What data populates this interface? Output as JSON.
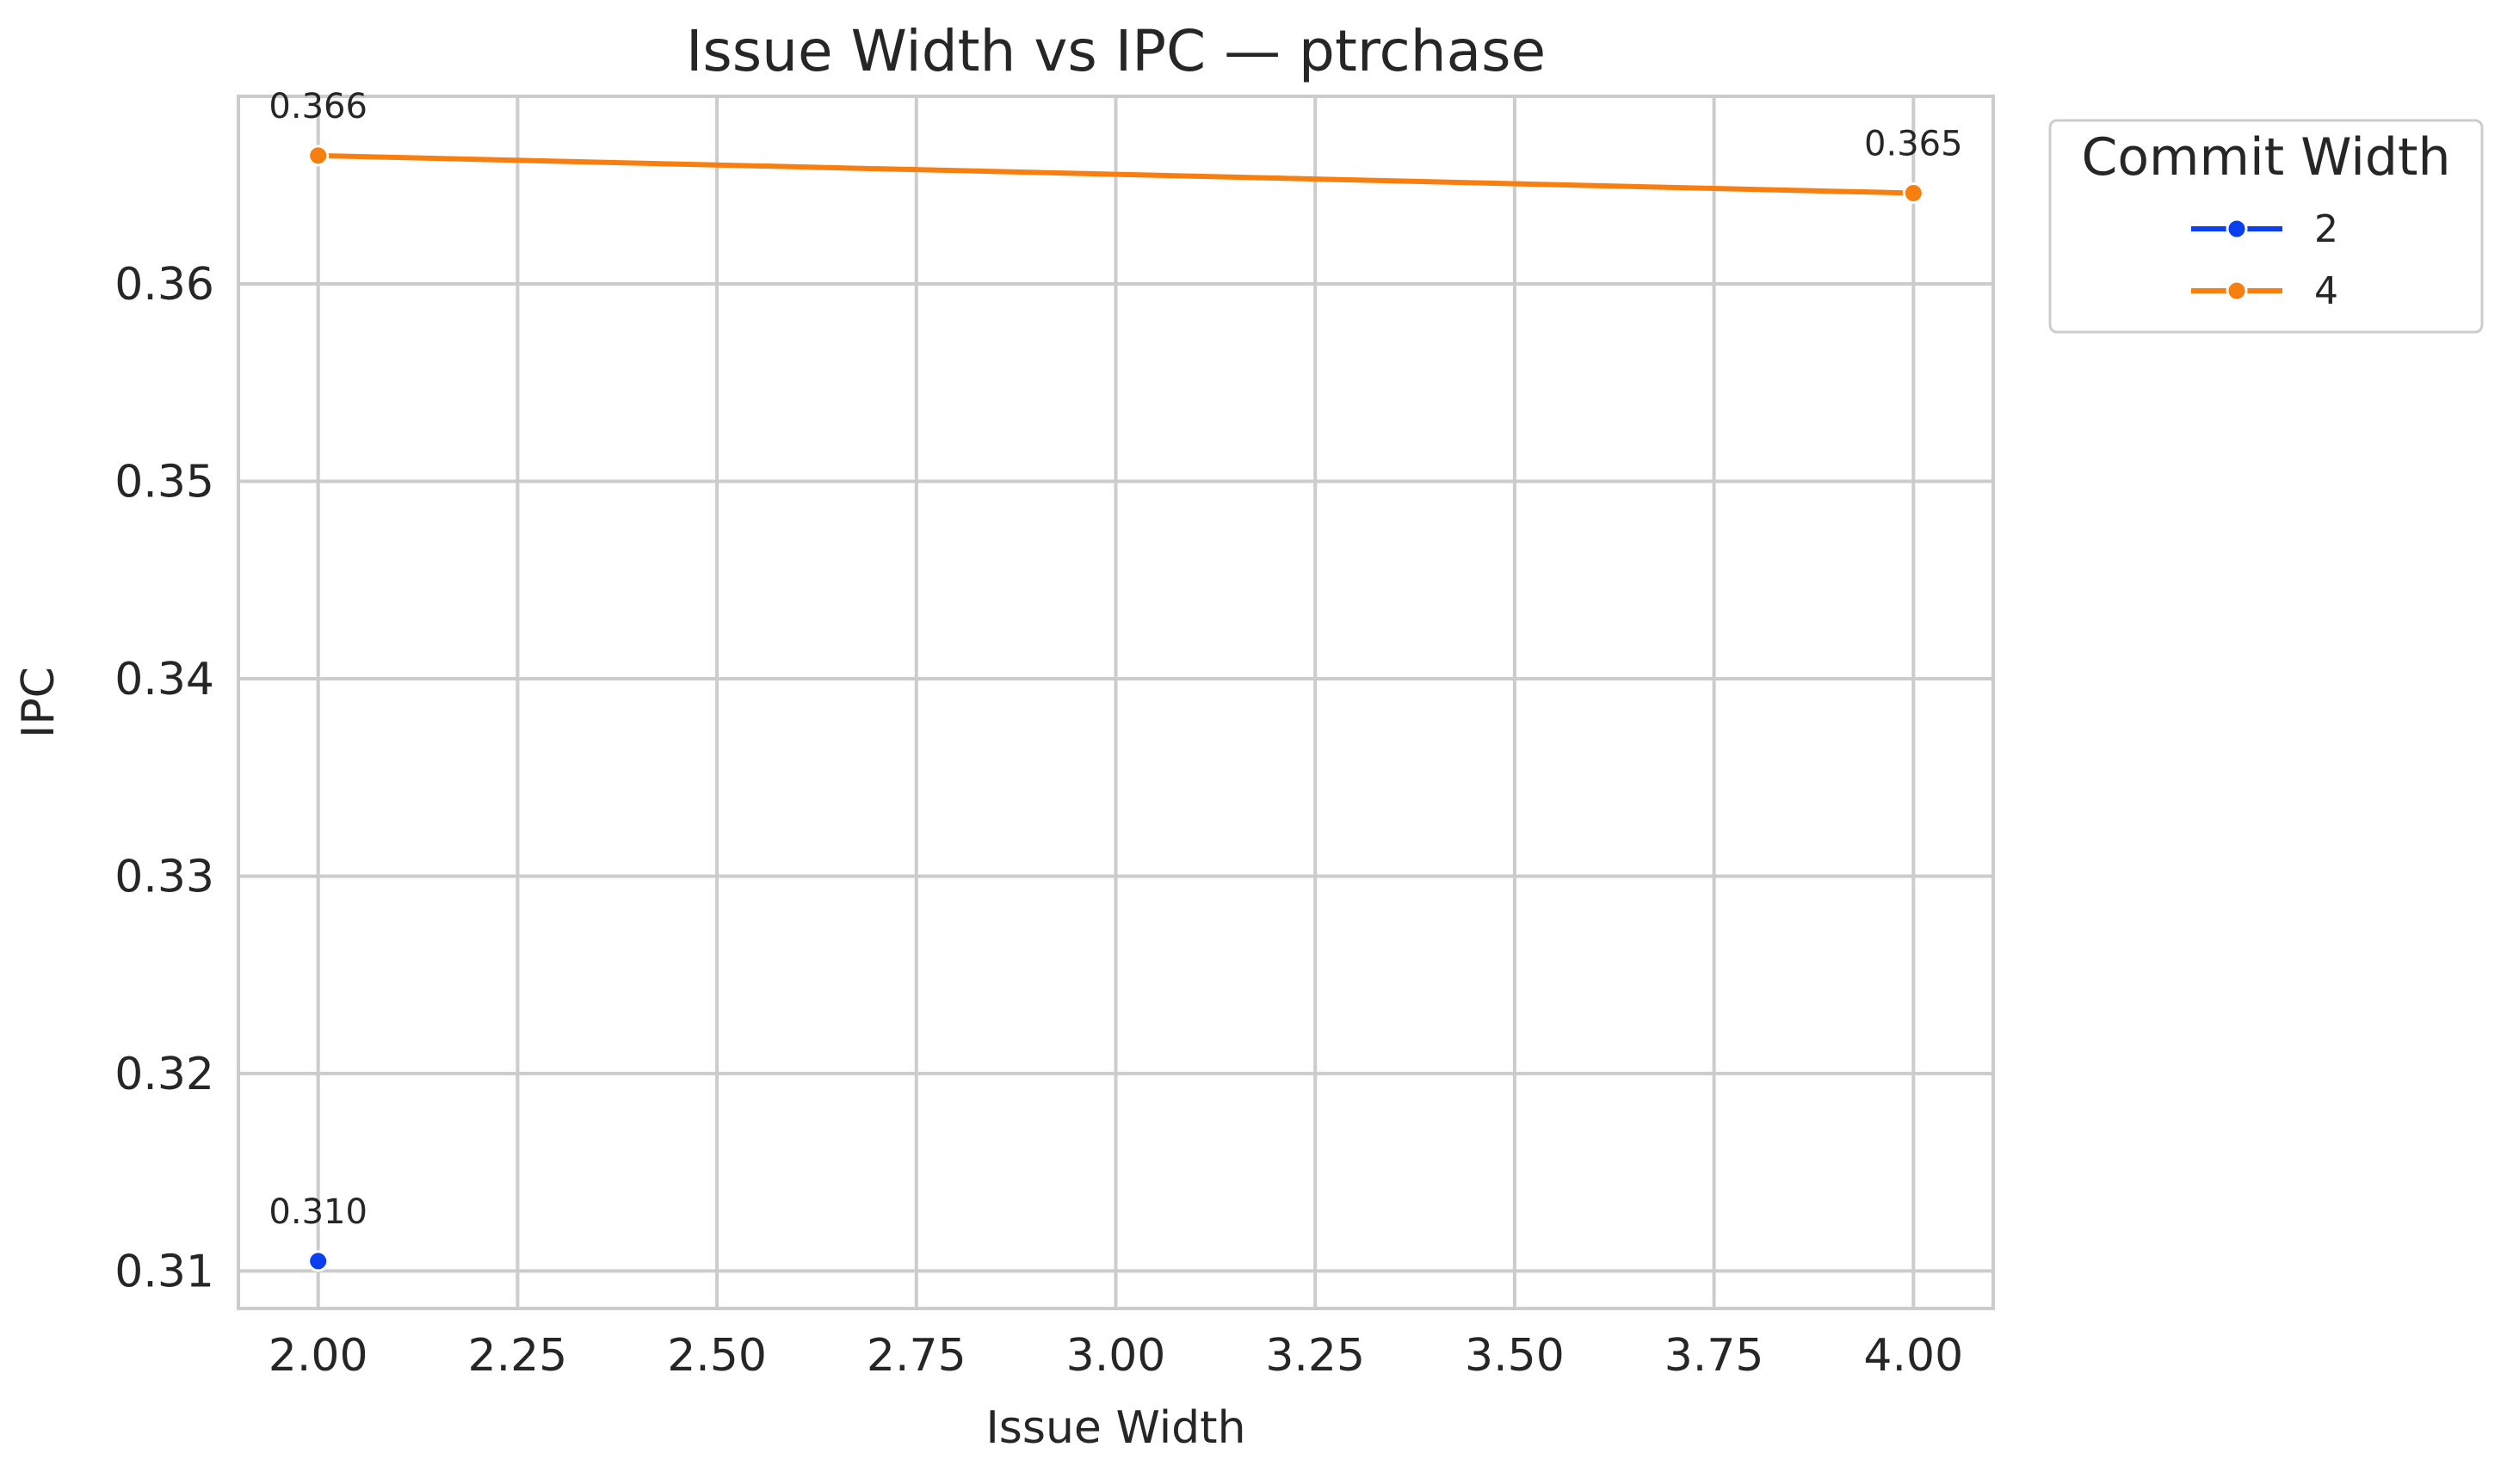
{
  "chart_data": {
    "type": "line",
    "title": "Issue Width vs IPC — ptrchase",
    "xlabel": "Issue Width",
    "ylabel": "IPC",
    "xlim": [
      1.9,
      4.1
    ],
    "ylim": [
      0.3081,
      0.3695
    ],
    "x_ticks": [
      2.0,
      2.25,
      2.5,
      2.75,
      3.0,
      3.25,
      3.5,
      3.75,
      4.0
    ],
    "x_tick_labels": [
      "2.00",
      "2.25",
      "2.50",
      "2.75",
      "3.00",
      "3.25",
      "3.50",
      "3.75",
      "4.00"
    ],
    "y_ticks": [
      0.31,
      0.32,
      0.33,
      0.34,
      0.35,
      0.36
    ],
    "y_tick_labels": [
      "0.31",
      "0.32",
      "0.33",
      "0.34",
      "0.35",
      "0.36"
    ],
    "grid": true,
    "legend": {
      "title": "Commit Width",
      "placement": "outside-top-right"
    },
    "series": [
      {
        "name": "2",
        "color": "#0a3ff0",
        "points": [
          {
            "x": 2.0,
            "y": 0.3105,
            "label": "0.310"
          }
        ]
      },
      {
        "name": "4",
        "color": "#f77f10",
        "points": [
          {
            "x": 2.0,
            "y": 0.3665,
            "label": "0.366"
          },
          {
            "x": 4.0,
            "y": 0.3646,
            "label": "0.365"
          }
        ]
      }
    ]
  }
}
